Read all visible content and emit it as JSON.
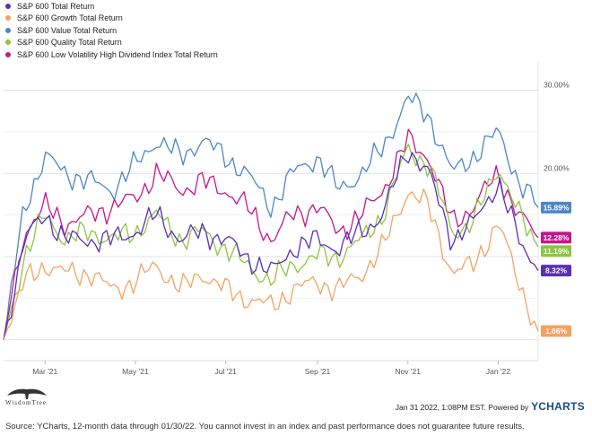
{
  "legend": [
    {
      "label": "S&P 600 Total Return",
      "color": "#5a2fb8"
    },
    {
      "label": "S&P 600 Growth Total Return",
      "color": "#f4a261"
    },
    {
      "label": "S&P 600 Value Total Return",
      "color": "#4a86c8"
    },
    {
      "label": "S&P 600 Quality Total Return",
      "color": "#8cc63f"
    },
    {
      "label": "S&P 600 Low Volatility High Dividend Index Total Return",
      "color": "#c4158e"
    }
  ],
  "footer": {
    "logo_text": "WisdomTree",
    "timestamp": "Jan 31 2022, 1:08PM EST.  Powered by",
    "brand_y": "Y",
    "brand_rest": "CHARTS",
    "source": "Source: YCharts, 12-month data through 01/30/22. You cannot invest in an index and past performance does not guarantee future results."
  },
  "chart_data": {
    "type": "line",
    "x_tick_labels": [
      "Mar '21",
      "May '21",
      "Jul '21",
      "Sep '21",
      "Nov '21",
      "Jan '22"
    ],
    "y_tick_labels": [
      "30.00%",
      "20.00%"
    ],
    "y_ticks": [
      30,
      20
    ],
    "ylim": [
      -2.5,
      33.5
    ],
    "grid": true,
    "legend_position": "top-left",
    "x": [
      "2021-02-01",
      "2021-02-15",
      "2021-03-01",
      "2021-03-15",
      "2021-04-01",
      "2021-04-15",
      "2021-05-01",
      "2021-05-15",
      "2021-06-01",
      "2021-06-15",
      "2021-07-01",
      "2021-07-15",
      "2021-08-01",
      "2021-08-15",
      "2021-09-01",
      "2021-09-15",
      "2021-10-01",
      "2021-10-15",
      "2021-11-01",
      "2021-11-15",
      "2021-12-01",
      "2021-12-15",
      "2022-01-01",
      "2022-01-15",
      "2022-01-28"
    ],
    "series": [
      {
        "name": "S&P 600 Value Total Return",
        "color": "#4a86c8",
        "end_label": "15.89%",
        "values": [
          0,
          16,
          22,
          20,
          19,
          18,
          21,
          24,
          22,
          24,
          22,
          20,
          16,
          20,
          22,
          18,
          20,
          23,
          29,
          27,
          20,
          22,
          25,
          19,
          15.89
        ]
      },
      {
        "name": "S&P 600 Low Volatility High Dividend Index Total Return",
        "color": "#c4158e",
        "end_label": "12.28%",
        "values": [
          0,
          13,
          16,
          14,
          15,
          16,
          17,
          20,
          18,
          19,
          18,
          16,
          12,
          15,
          16,
          13,
          15,
          18,
          24,
          22,
          14,
          16,
          20,
          15,
          12.28
        ]
      },
      {
        "name": "S&P 600 Quality Total Return",
        "color": "#8cc63f",
        "end_label": "11.19%",
        "values": [
          0,
          10,
          15,
          12,
          13,
          12,
          13,
          15,
          12,
          13,
          11,
          9,
          7,
          9,
          10,
          10,
          12,
          15,
          23,
          21,
          13,
          14,
          21,
          15,
          11.19
        ]
      },
      {
        "name": "S&P 600 Total Return",
        "color": "#5a2fb8",
        "end_label": "8.32%",
        "values": [
          0,
          12,
          15,
          12,
          12,
          12,
          13,
          15,
          12,
          13,
          12,
          10,
          8,
          11,
          12,
          11,
          13,
          15,
          23,
          20,
          12,
          14,
          19,
          12,
          8.32
        ]
      },
      {
        "name": "S&P 600 Growth Total Return",
        "color": "#f4a261",
        "end_label": "1.06%",
        "values": [
          0,
          7,
          9,
          8,
          8,
          6,
          7,
          9,
          6,
          8,
          6,
          5,
          4,
          6,
          7,
          6,
          8,
          11,
          18,
          16,
          8,
          9,
          14,
          7,
          1.06
        ]
      }
    ]
  }
}
